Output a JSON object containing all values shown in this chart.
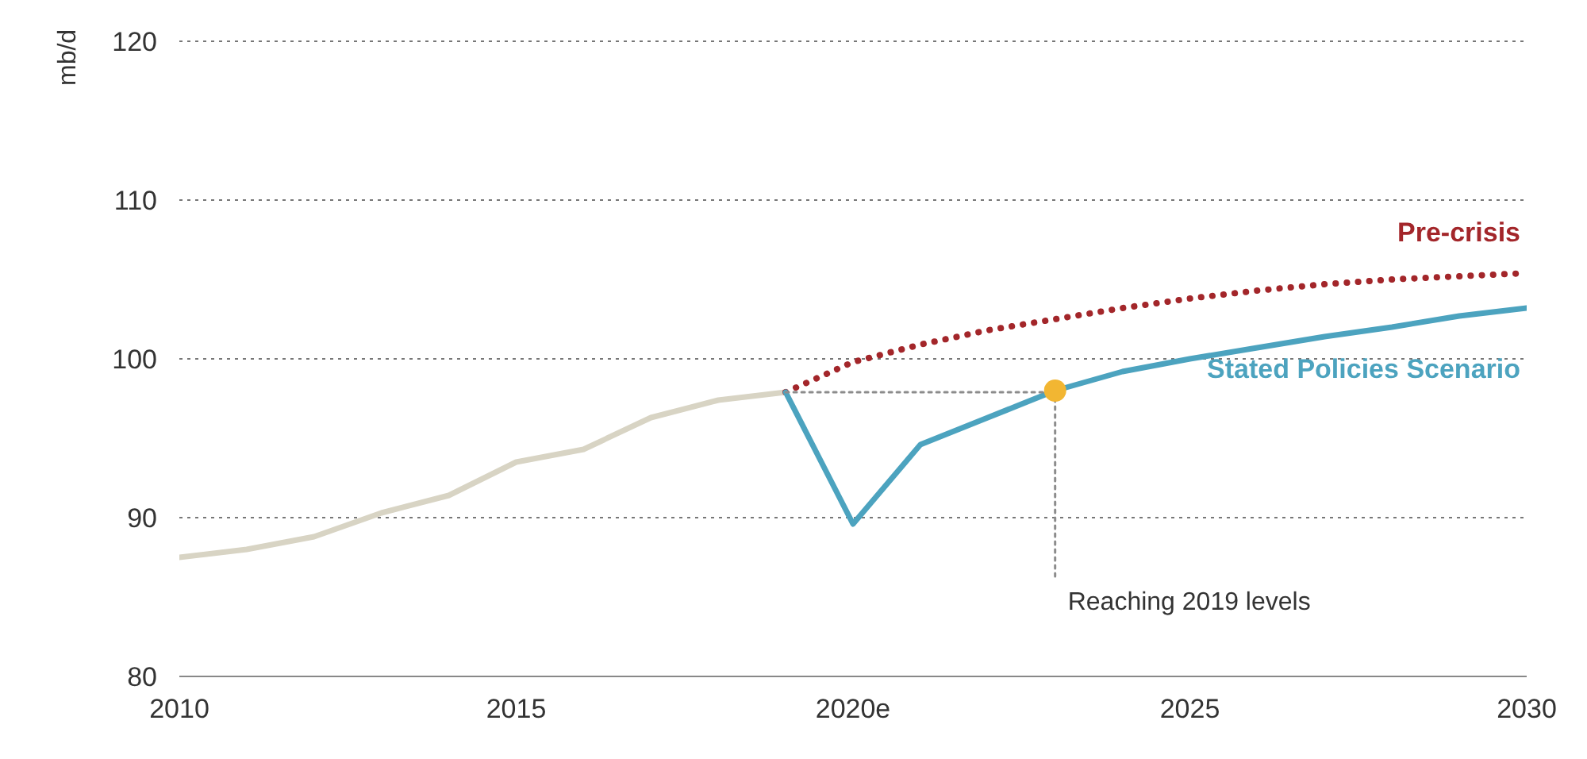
{
  "chart_data": {
    "type": "line",
    "ylabel": "mb/d",
    "xlim": [
      2010,
      2030
    ],
    "xticks": [
      2010,
      2015,
      {
        "value": 2020,
        "label": "2020e"
      },
      2025,
      2030
    ],
    "ylim": [
      80,
      120
    ],
    "yticks": [
      80,
      90,
      100,
      110,
      120
    ],
    "grid": "y",
    "legend": false,
    "series": [
      {
        "color": "#d8d4c4",
        "x": [
          2010,
          2011,
          2012,
          2013,
          2014,
          2015,
          2016,
          2017,
          2018,
          2019
        ],
        "values": [
          87.5,
          88,
          88.8,
          90.3,
          91.4,
          93.5,
          94.3,
          96.3,
          97.4,
          97.9
        ]
      },
      {
        "name": "Pre-crisis",
        "color": "#a3262a",
        "line_style": "dotted",
        "x": [
          2019,
          2020,
          2021,
          2022,
          2023,
          2024,
          2025,
          2026,
          2027,
          2028,
          2029,
          2030
        ],
        "values": [
          97.9,
          99.8,
          100.9,
          101.8,
          102.5,
          103.2,
          103.8,
          104.3,
          104.7,
          105,
          105.2,
          105.4
        ]
      },
      {
        "name": "Stated Policies Scenario",
        "color": "#4ca3bf",
        "x": [
          2019,
          2020,
          2021,
          2022,
          2023,
          2024,
          2025,
          2026,
          2027,
          2028,
          2029,
          2030
        ],
        "values": [
          97.9,
          89.6,
          94.6,
          96.3,
          98,
          99.2,
          100,
          100.7,
          101.4,
          102,
          102.7,
          103.2
        ]
      },
      {
        "color": "#8c8c8c",
        "line_style": "dotted",
        "x": [
          2019,
          2023
        ],
        "values": [
          97.9,
          97.9
        ]
      },
      {
        "color": "#8c8c8c",
        "line_style": "dotted",
        "x": [
          2023,
          2023
        ],
        "values": [
          98,
          86
        ]
      },
      {
        "type": "scatter",
        "color": "#f2b632",
        "x": [
          2023
        ],
        "values": [
          98
        ]
      }
    ],
    "annotations": [
      {
        "text": "Reaching 2019 levels",
        "x": 2023,
        "y": 86
      }
    ]
  }
}
